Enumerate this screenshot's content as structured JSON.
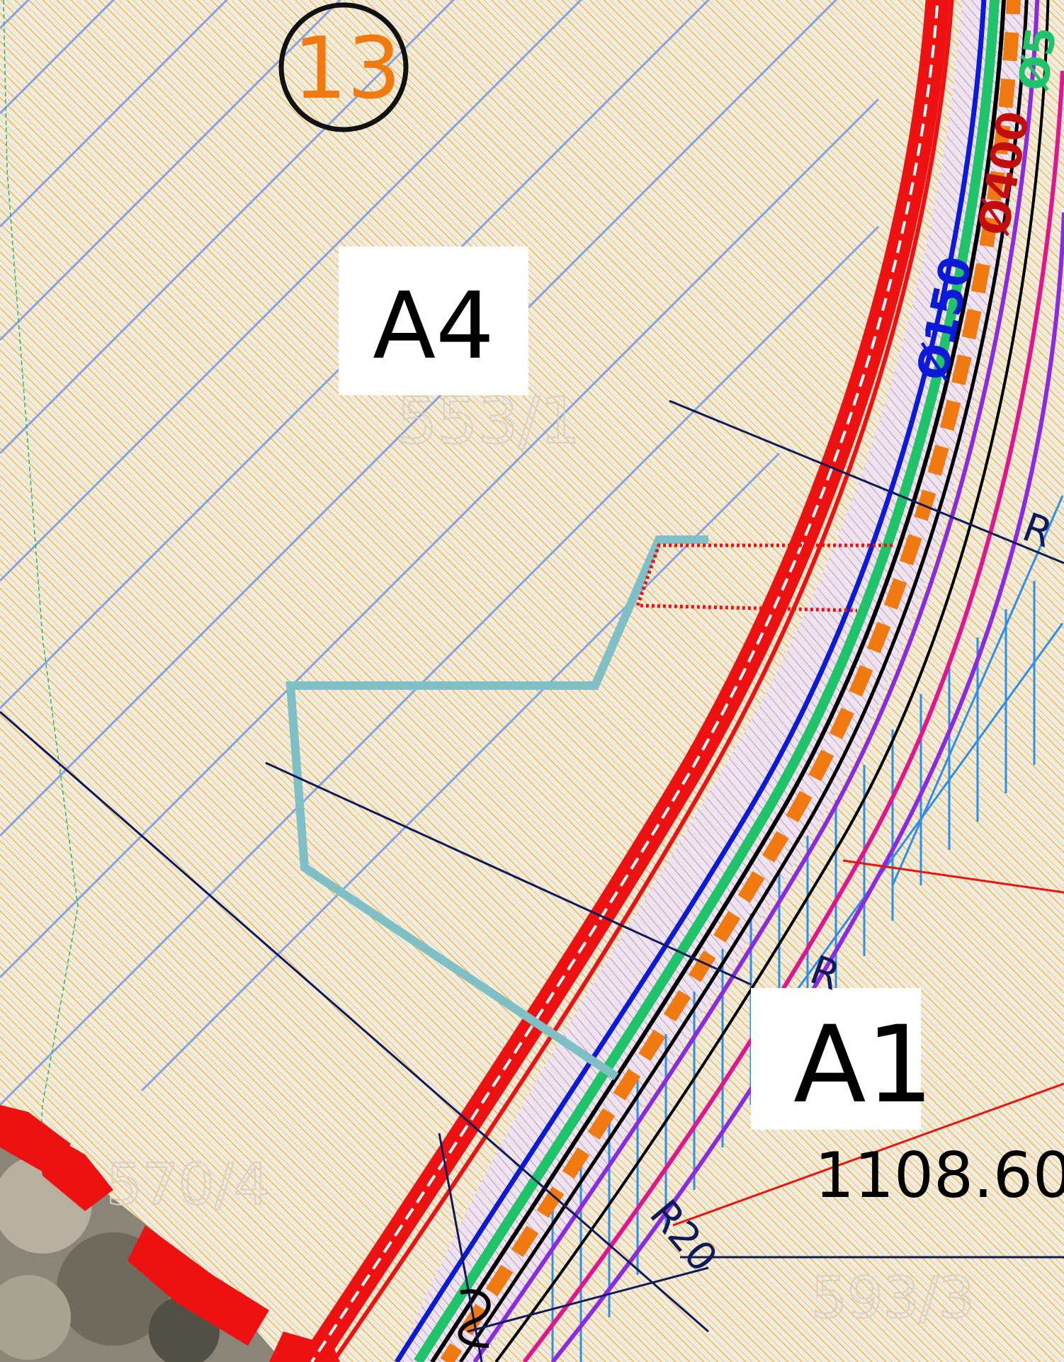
{
  "map": {
    "sheet_number": "13",
    "zones": {
      "a4": "A4",
      "a1": "A1"
    },
    "elevation": "1108.60",
    "pipes": {
      "blue": "Ø150",
      "red": "Ø400",
      "green_partial": "Ø5"
    },
    "radius_labels": {
      "r20": "R20",
      "r_upper": "R",
      "r_lower": "R"
    },
    "parcels": {
      "north": "553/1",
      "southwest": "570/4",
      "southeast": "593/3"
    },
    "colors": {
      "background": "#f4ecd6",
      "hatch_orange": "#e8b45a",
      "hatch_blue": "#6f8fe0",
      "road_red": "#ee1111",
      "pipe_blue": "#0b19d9",
      "pipe_orange": "#f07a10",
      "pipe_green": "#1fc46a",
      "pipe_purple": "#8a2be2",
      "pipe_magenta": "#e0168f",
      "boundary_teal": "#7fbfc6",
      "leader_navy": "#0e1a5c",
      "hatch_lightblue": "#2f8ee6"
    }
  }
}
